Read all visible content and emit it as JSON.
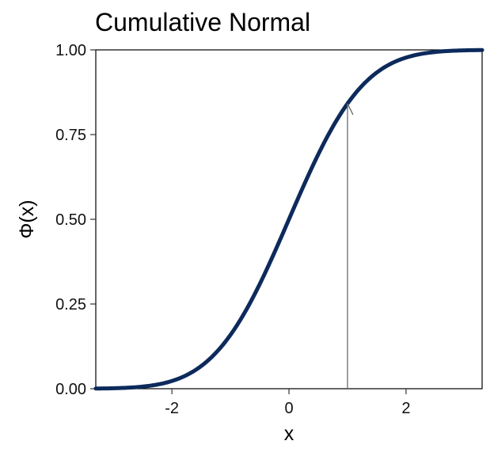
{
  "chart_data": {
    "type": "line",
    "title": "Cumulative Normal",
    "xlabel": "x",
    "ylabel": "Φ(x)",
    "xlim": [
      -3.3,
      3.3
    ],
    "ylim": [
      0,
      1
    ],
    "x_ticks": [
      -2,
      0,
      2
    ],
    "x_tick_labels": [
      "-2",
      "0",
      "2"
    ],
    "y_ticks": [
      0,
      0.25,
      0.5,
      0.75,
      1
    ],
    "y_tick_labels": [
      "0.00",
      "0.25",
      "0.50",
      "0.75",
      "1.00"
    ],
    "grid": false,
    "series": [
      {
        "function": "standard normal CDF",
        "color": "#0d2a5c",
        "x": [
          -3.3,
          -3.0,
          -2.5,
          -2.0,
          -1.5,
          -1.0,
          -0.5,
          0.0,
          0.5,
          1.0,
          1.5,
          2.0,
          2.5,
          3.0,
          3.3
        ],
        "y": [
          0.0005,
          0.0013,
          0.0062,
          0.0228,
          0.0668,
          0.1587,
          0.3085,
          0.5,
          0.6915,
          0.8413,
          0.9332,
          0.9772,
          0.9938,
          0.9987,
          0.9995
        ]
      }
    ],
    "annotations": [
      {
        "type": "arrow",
        "x": 1,
        "from_y": 0,
        "to_y": 0.8413,
        "color": "#6b6b6b"
      }
    ]
  }
}
